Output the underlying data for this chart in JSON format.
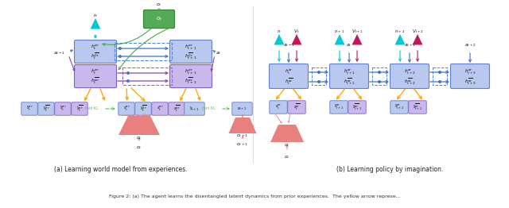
{
  "fig_width": 6.4,
  "fig_height": 2.62,
  "dpi": 100,
  "bg_color": "#ffffff",
  "caption_a": "(a) Learning world model from experiences.",
  "caption_b": "(b) Learning policy by imagination.",
  "bottom_text": "Figure 2: (a) The agent learns the disentangled latent dynamics from prior experiences.  The yellow arrow represe...",
  "colors": {
    "blue_box": "#b8c8ee",
    "purple_box": "#c8b8ee",
    "green_box": "#55aa55",
    "pink_trap": "#e88080",
    "cyan": "#00c8d8",
    "magenta": "#c0185a",
    "orange": "#ffaa00",
    "blue_arr": "#4070cc",
    "purple_arr": "#8844bb",
    "green_arr": "#44aa44",
    "dashed_green": "#44cc44",
    "dashed_blue": "#5588dd",
    "dashed_purple": "#9966cc"
  }
}
